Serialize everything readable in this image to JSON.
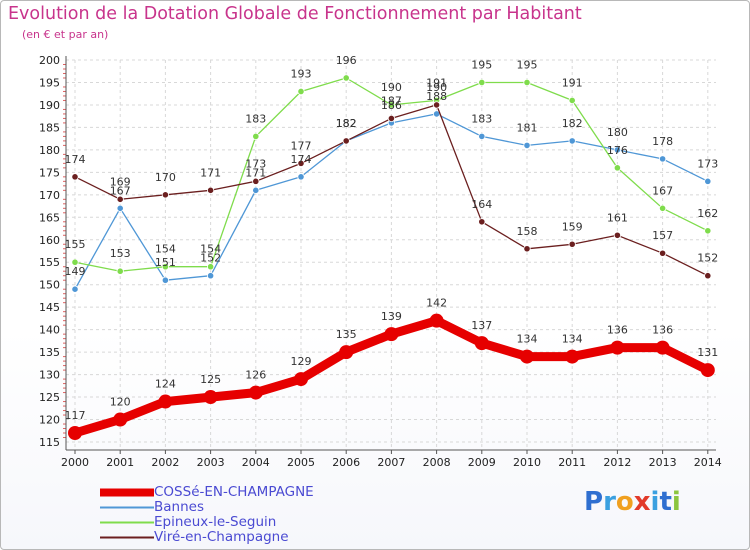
{
  "title": "Evolution de la Dotation Globale de Fonctionnement par Habitant",
  "subtitle": "(en € et par an)",
  "chart_data": {
    "type": "line",
    "title": "Evolution de la Dotation Globale de Fonctionnement par Habitant",
    "ylabel": "(en € et par an)",
    "xlabel": "",
    "ylim": [
      115,
      200
    ],
    "yticks": [
      115,
      120,
      125,
      130,
      135,
      140,
      145,
      150,
      155,
      160,
      165,
      170,
      175,
      180,
      185,
      190,
      195,
      200
    ],
    "categories": [
      "2000",
      "2001",
      "2002",
      "2003",
      "2004",
      "2005",
      "2006",
      "2007",
      "2008",
      "2009",
      "2010",
      "2011",
      "2012",
      "2013",
      "2014"
    ],
    "grid": true,
    "series": [
      {
        "name": "COSSé-EN-CHAMPAGNE",
        "color": "#e60000",
        "values": [
          117,
          120,
          124,
          125,
          126,
          129,
          135,
          139,
          142,
          137,
          134,
          134,
          136,
          136,
          131
        ]
      },
      {
        "name": "Bannes",
        "color": "#4f97d6",
        "values": [
          149,
          167,
          151,
          152,
          171,
          174,
          182,
          186,
          188,
          183,
          181,
          182,
          180,
          178,
          173
        ]
      },
      {
        "name": "Epineux-le-Seguin",
        "color": "#7fdc4c",
        "values": [
          155,
          153,
          154,
          154,
          183,
          193,
          196,
          190,
          191,
          195,
          195,
          191,
          176,
          167,
          162
        ]
      },
      {
        "name": "Viré-en-Champagne",
        "color": "#6b1f1f",
        "values": [
          174,
          169,
          170,
          171,
          173,
          177,
          182,
          187,
          190,
          164,
          158,
          159,
          161,
          157,
          152
        ]
      }
    ]
  },
  "legend": [
    {
      "label": "COSSé-EN-CHAMPAGNE",
      "color": "#e60000"
    },
    {
      "label": "Bannes",
      "color": "#4f97d6"
    },
    {
      "label": "Epineux-le-Seguin",
      "color": "#7fdc4c"
    },
    {
      "label": "Viré-en-Champagne",
      "color": "#6b1f1f"
    }
  ],
  "logo": {
    "text": "Proxiti",
    "letters": [
      {
        "char": "P",
        "color": "#2f6fd0"
      },
      {
        "char": "r",
        "color": "#3aa0e0"
      },
      {
        "char": "o",
        "color": "#f0a020"
      },
      {
        "char": "x",
        "color": "#e23a2a"
      },
      {
        "char": "i",
        "color": "#3aa0e0"
      },
      {
        "char": "t",
        "color": "#2f6fd0"
      },
      {
        "char": "i",
        "color": "#8cc63f"
      }
    ]
  }
}
